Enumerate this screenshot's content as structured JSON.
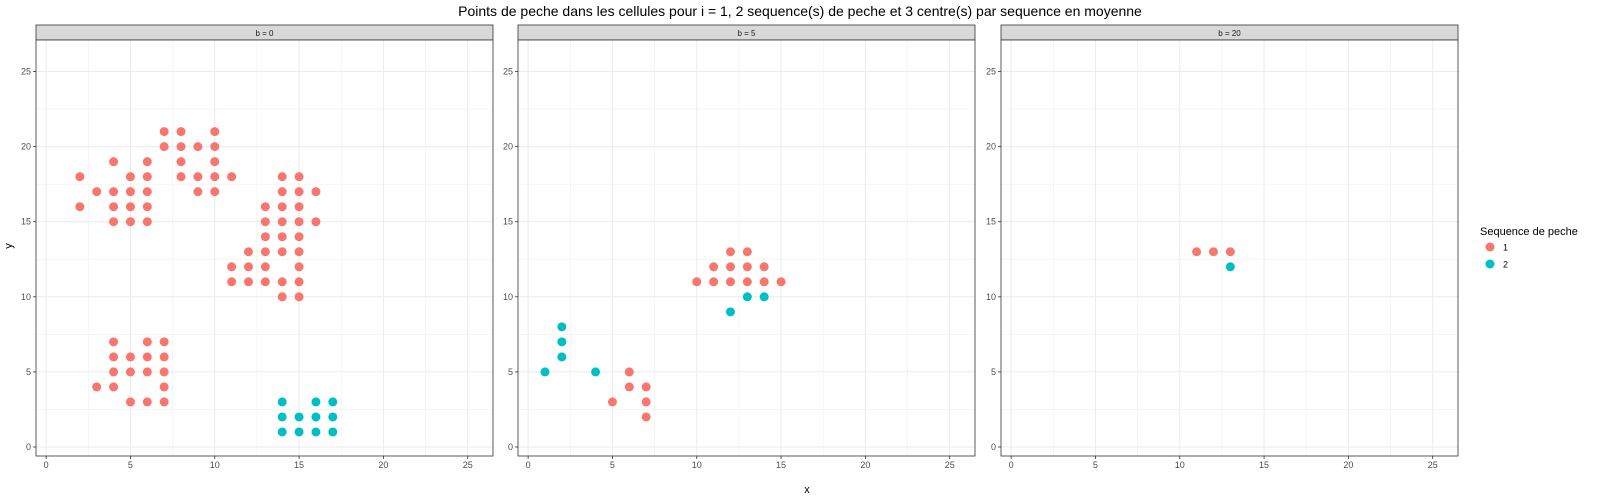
{
  "chart_data": {
    "type": "scatter",
    "title": "Points de peche dans les cellules pour i = 1, 2 sequence(s) de peche et 3 centre(s) par sequence en moyenne",
    "xlabel": "x",
    "ylabel": "y",
    "xlim": [
      -0.6,
      26.5
    ],
    "ylim": [
      -0.6,
      27.1
    ],
    "x_ticks": [
      0,
      5,
      10,
      15,
      20,
      25
    ],
    "y_ticks": [
      0,
      5,
      10,
      15,
      20,
      25
    ],
    "grid": true,
    "legend": {
      "title": "Sequence de peche",
      "position": "right",
      "entries": [
        {
          "label": "1",
          "color": "#F8766D"
        },
        {
          "label": "2",
          "color": "#00BFC4"
        }
      ]
    },
    "panels": [
      {
        "label": "b = 0",
        "series": [
          {
            "name": "1",
            "points": [
              [
                2,
                18
              ],
              [
                2,
                16
              ],
              [
                3,
                17
              ],
              [
                3,
                4
              ],
              [
                4,
                19
              ],
              [
                4,
                17
              ],
              [
                4,
                16
              ],
              [
                4,
                15
              ],
              [
                4,
                7
              ],
              [
                4,
                6
              ],
              [
                4,
                5
              ],
              [
                4,
                4
              ],
              [
                5,
                18
              ],
              [
                5,
                17
              ],
              [
                5,
                16
              ],
              [
                5,
                15
              ],
              [
                5,
                6
              ],
              [
                5,
                5
              ],
              [
                5,
                3
              ],
              [
                6,
                19
              ],
              [
                6,
                18
              ],
              [
                6,
                17
              ],
              [
                6,
                16
              ],
              [
                6,
                15
              ],
              [
                6,
                7
              ],
              [
                6,
                6
              ],
              [
                6,
                5
              ],
              [
                6,
                3
              ],
              [
                7,
                21
              ],
              [
                7,
                20
              ],
              [
                7,
                7
              ],
              [
                7,
                6
              ],
              [
                7,
                5
              ],
              [
                7,
                4
              ],
              [
                7,
                3
              ],
              [
                8,
                21
              ],
              [
                8,
                20
              ],
              [
                8,
                19
              ],
              [
                8,
                18
              ],
              [
                9,
                20
              ],
              [
                9,
                18
              ],
              [
                9,
                17
              ],
              [
                10,
                21
              ],
              [
                10,
                20
              ],
              [
                10,
                19
              ],
              [
                10,
                18
              ],
              [
                10,
                17
              ],
              [
                11,
                18
              ],
              [
                11,
                12
              ],
              [
                11,
                11
              ],
              [
                12,
                13
              ],
              [
                12,
                12
              ],
              [
                12,
                11
              ],
              [
                13,
                16
              ],
              [
                13,
                15
              ],
              [
                13,
                14
              ],
              [
                13,
                13
              ],
              [
                13,
                12
              ],
              [
                13,
                11
              ],
              [
                14,
                18
              ],
              [
                14,
                17
              ],
              [
                14,
                16
              ],
              [
                14,
                15
              ],
              [
                14,
                14
              ],
              [
                14,
                13
              ],
              [
                14,
                11
              ],
              [
                14,
                10
              ],
              [
                15,
                18
              ],
              [
                15,
                17
              ],
              [
                15,
                16
              ],
              [
                15,
                15
              ],
              [
                15,
                14
              ],
              [
                15,
                13
              ],
              [
                15,
                12
              ],
              [
                15,
                11
              ],
              [
                15,
                10
              ],
              [
                16,
                17
              ],
              [
                16,
                15
              ]
            ]
          },
          {
            "name": "2",
            "points": [
              [
                14,
                3
              ],
              [
                14,
                2
              ],
              [
                14,
                1
              ],
              [
                15,
                2
              ],
              [
                15,
                1
              ],
              [
                16,
                3
              ],
              [
                16,
                2
              ],
              [
                16,
                1
              ],
              [
                17,
                3
              ],
              [
                17,
                2
              ],
              [
                17,
                1
              ]
            ]
          }
        ]
      },
      {
        "label": "b = 5",
        "series": [
          {
            "name": "1",
            "points": [
              [
                5,
                3
              ],
              [
                6,
                5
              ],
              [
                6,
                4
              ],
              [
                7,
                4
              ],
              [
                7,
                3
              ],
              [
                7,
                2
              ],
              [
                10,
                11
              ],
              [
                11,
                12
              ],
              [
                11,
                11
              ],
              [
                12,
                13
              ],
              [
                12,
                12
              ],
              [
                12,
                11
              ],
              [
                13,
                13
              ],
              [
                13,
                12
              ],
              [
                13,
                11
              ],
              [
                14,
                12
              ],
              [
                14,
                11
              ],
              [
                15,
                11
              ]
            ]
          },
          {
            "name": "2",
            "points": [
              [
                1,
                5
              ],
              [
                2,
                8
              ],
              [
                2,
                7
              ],
              [
                2,
                6
              ],
              [
                4,
                5
              ],
              [
                12,
                9
              ],
              [
                13,
                10
              ],
              [
                14,
                10
              ]
            ]
          }
        ]
      },
      {
        "label": "b = 20",
        "series": [
          {
            "name": "1",
            "points": [
              [
                11,
                13
              ],
              [
                12,
                13
              ],
              [
                13,
                13
              ]
            ]
          },
          {
            "name": "2",
            "points": [
              [
                13,
                12
              ]
            ]
          }
        ]
      }
    ]
  }
}
